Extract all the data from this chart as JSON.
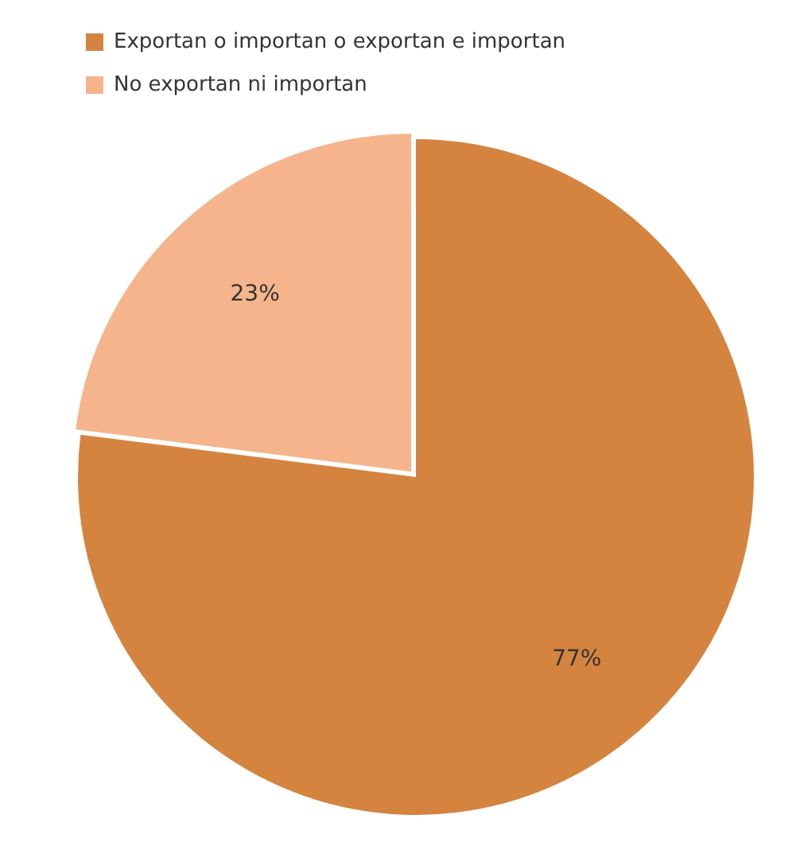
{
  "chart_data": {
    "type": "pie",
    "categories": [
      "Exportan o importan o exportan e importan",
      "No exportan ni importan"
    ],
    "values": [
      77,
      23
    ],
    "colors": [
      "#d5843f",
      "#f5b48c"
    ],
    "value_labels": [
      "77%",
      "23%"
    ],
    "legend": "top left"
  }
}
